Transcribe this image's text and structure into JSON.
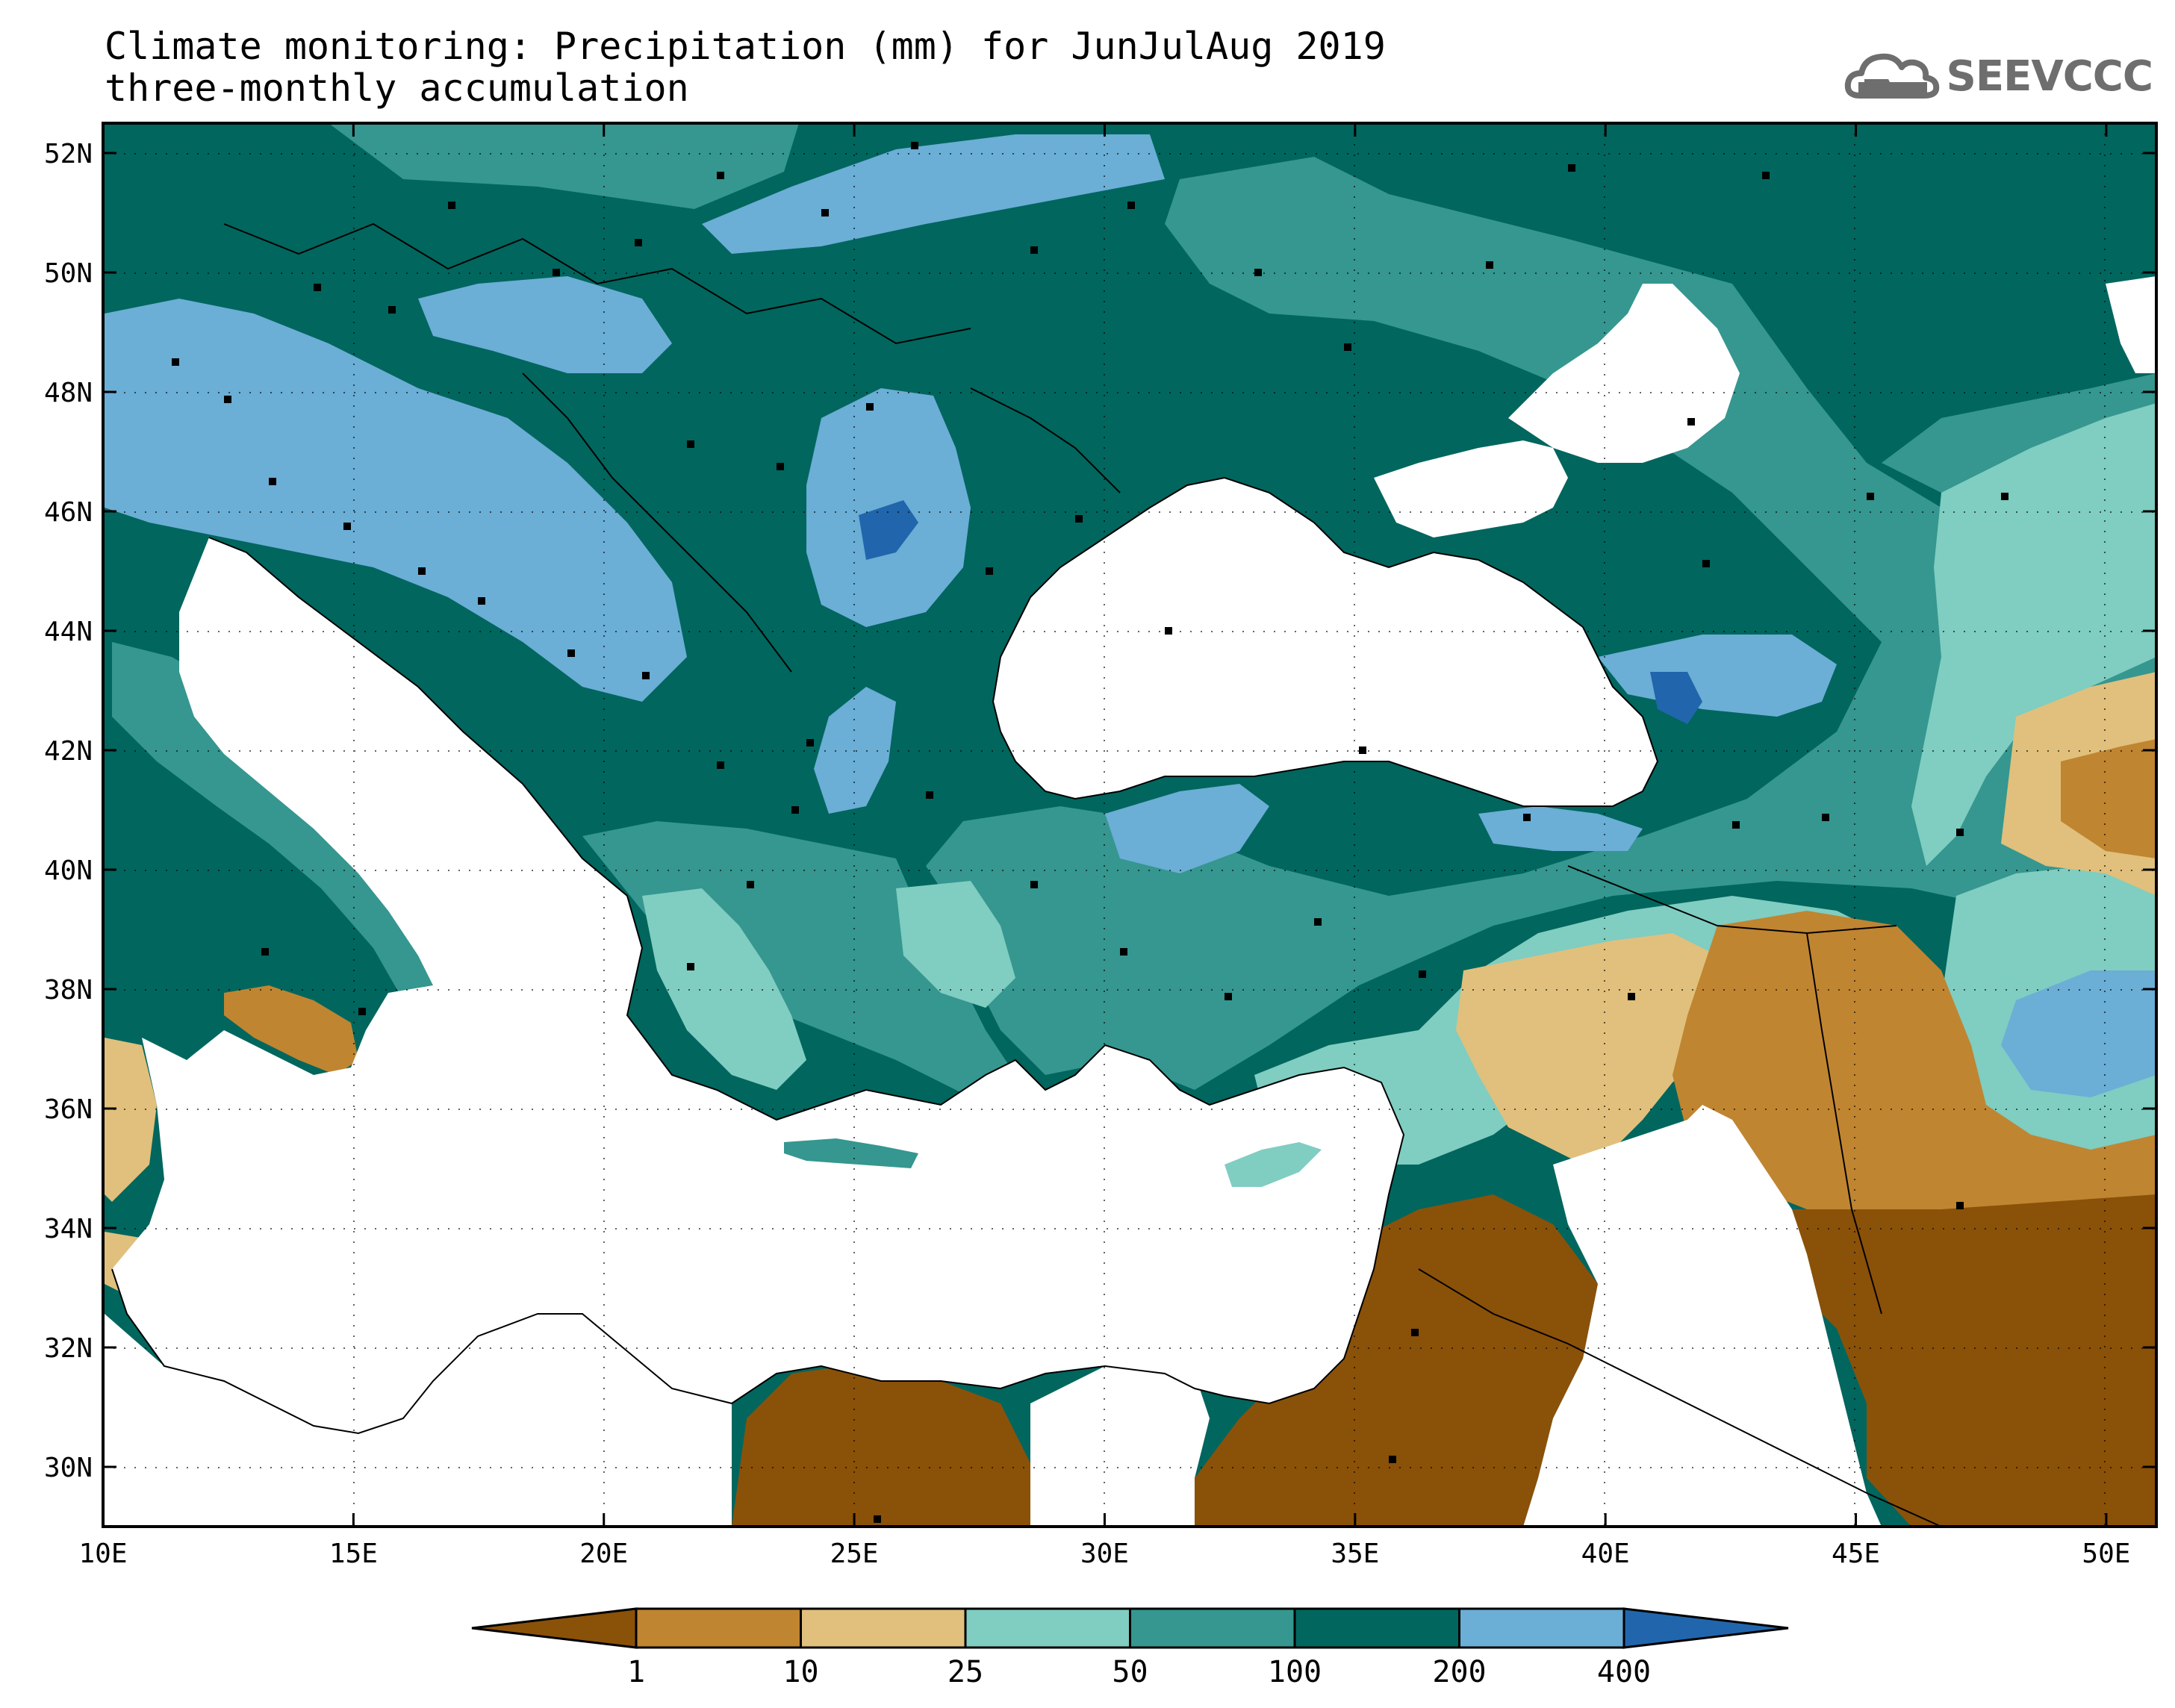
{
  "header": {
    "title_line1": "Climate monitoring: Precipitation (mm) for JunJulAug 2019",
    "title_line2": "three-monthly accumulation",
    "logo_text": "SEEVCCC",
    "logo_icon": "cloud-icon"
  },
  "map": {
    "lon_range": [
      10,
      51
    ],
    "lat_range": [
      29,
      52.5
    ],
    "lon_ticks": [
      {
        "value": 10,
        "label": "10E"
      },
      {
        "value": 15,
        "label": "15E"
      },
      {
        "value": 20,
        "label": "20E"
      },
      {
        "value": 25,
        "label": "25E"
      },
      {
        "value": 30,
        "label": "30E"
      },
      {
        "value": 35,
        "label": "35E"
      },
      {
        "value": 40,
        "label": "40E"
      },
      {
        "value": 45,
        "label": "45E"
      },
      {
        "value": 50,
        "label": "50E"
      }
    ],
    "lat_ticks": [
      {
        "value": 30,
        "label": "30N"
      },
      {
        "value": 32,
        "label": "32N"
      },
      {
        "value": 34,
        "label": "34N"
      },
      {
        "value": 36,
        "label": "36N"
      },
      {
        "value": 38,
        "label": "38N"
      },
      {
        "value": 40,
        "label": "40N"
      },
      {
        "value": 42,
        "label": "42N"
      },
      {
        "value": 44,
        "label": "44N"
      },
      {
        "value": 46,
        "label": "46N"
      },
      {
        "value": 48,
        "label": "48N"
      },
      {
        "value": 50,
        "label": "50N"
      },
      {
        "value": 52,
        "label": "52N"
      }
    ],
    "gridlines": "dotted",
    "background_color": "#006a5e"
  },
  "colorbar": {
    "levels": [
      "1",
      "10",
      "25",
      "50",
      "100",
      "200",
      "400"
    ],
    "colors": [
      "#8a5109",
      "#c08531",
      "#e0c07c",
      "#80cdc1",
      "#35978f",
      "#01665e",
      "#6baed6",
      "#2166ac"
    ]
  }
}
